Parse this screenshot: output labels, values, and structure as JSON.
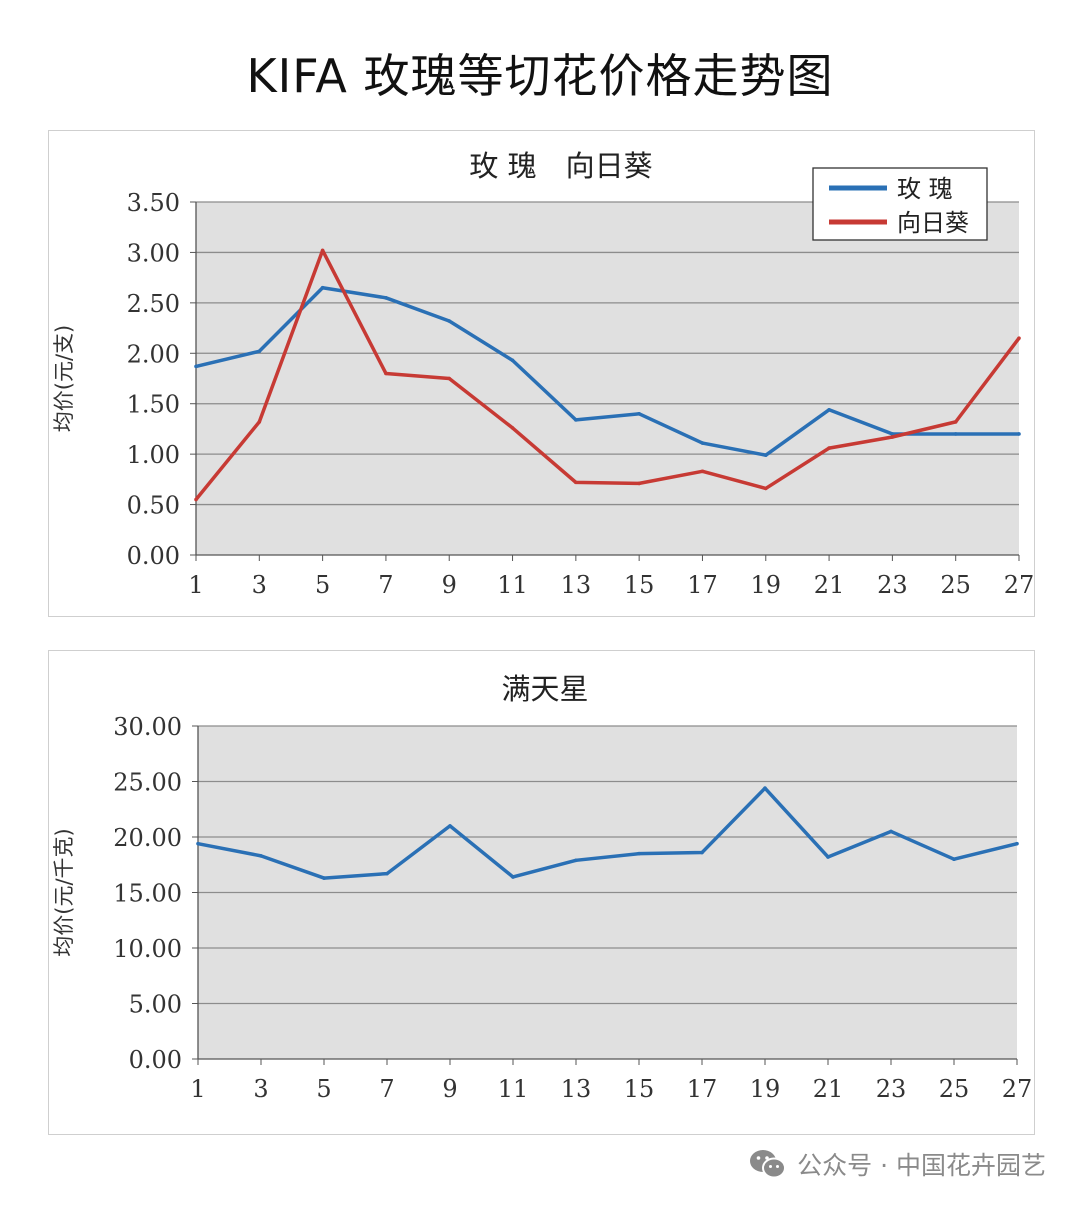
{
  "page_title": "KIFA 玫瑰等切花价格走势图",
  "watermark": "公众号 · 中国花卉园艺",
  "chart_data": [
    {
      "type": "line",
      "title": "玫 瑰　向日葵",
      "ylabel": "均价(元/支)",
      "xlabel": "",
      "x": [
        1,
        3,
        5,
        7,
        9,
        11,
        13,
        15,
        17,
        19,
        21,
        23,
        25,
        27
      ],
      "ylim": [
        0,
        3.5
      ],
      "yticks": [
        "0.00",
        "0.50",
        "1.00",
        "1.50",
        "2.00",
        "2.50",
        "3.00",
        "3.50"
      ],
      "grid": true,
      "legend": "top-right",
      "series": [
        {
          "name": "玫 瑰",
          "color": "#2a70b5",
          "values": [
            1.87,
            2.02,
            2.65,
            2.55,
            2.32,
            1.93,
            1.34,
            1.4,
            1.11,
            0.99,
            1.44,
            1.2,
            1.2,
            1.2
          ]
        },
        {
          "name": "向日葵",
          "color": "#c73a34",
          "values": [
            0.55,
            1.32,
            3.02,
            1.8,
            1.75,
            1.26,
            0.72,
            0.71,
            0.83,
            0.66,
            1.06,
            1.17,
            1.32,
            2.15
          ]
        }
      ]
    },
    {
      "type": "line",
      "title": "满天星",
      "ylabel": "均价(元/千克)",
      "xlabel": "",
      "x": [
        1,
        3,
        5,
        7,
        9,
        11,
        13,
        15,
        17,
        19,
        21,
        23,
        25,
        27
      ],
      "ylim": [
        0,
        30
      ],
      "yticks": [
        "0.00",
        "5.00",
        "10.00",
        "15.00",
        "20.00",
        "25.00",
        "30.00"
      ],
      "grid": true,
      "series": [
        {
          "color": "#2a70b5",
          "values": [
            19.4,
            18.3,
            16.3,
            16.7,
            21.0,
            16.4,
            17.9,
            18.5,
            18.6,
            24.4,
            18.2,
            20.5,
            18.0,
            19.4
          ]
        }
      ]
    }
  ]
}
